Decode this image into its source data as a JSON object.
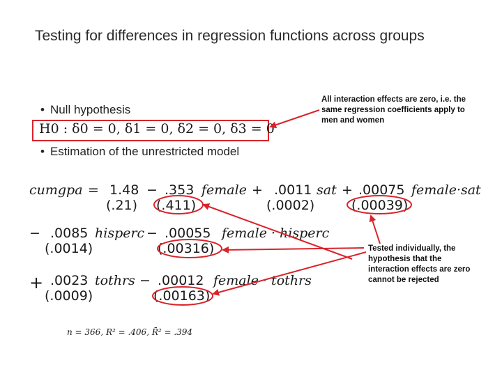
{
  "slide": {
    "title": "Testing for differences in regression functions across groups",
    "bullet_null": "Null hypothesis",
    "bullet_estimation": "Estimation of the unrestricted model",
    "bullet_char": "•",
    "hypothesis": "H0 : δ0 = 0, δ1 = 0, δ2 = 0, δ3 = 0",
    "callout_top": "All interaction effects are zero, i.e. the same regression coefficients apply to men and women",
    "callout_bottom": "Tested individually, the hypothesis that the interaction effects are zero cannot be rejected",
    "stats_line": "n = 366, R² = .406, R̄² = .394"
  },
  "equation": {
    "line1": {
      "dep": "cumgpa",
      "eq": "=",
      "c1": "1.48",
      "op1": "−",
      "c2": ".353",
      "v2": "female",
      "op2": "+",
      "c3": ".0011",
      "v3": "sat",
      "op3": "+",
      "c4": ".00075",
      "v4": "female·sat"
    },
    "se1": {
      "s1": "(.21)",
      "s2": "(.411)",
      "s3": "(.0002)",
      "s4": "(.00039)"
    },
    "line2": {
      "op0": "−",
      "c1": ".0085",
      "v1": "hisperc",
      "op1": "−",
      "c2": ".00055",
      "v2": "female · hisperc"
    },
    "se2": {
      "s1": "(.0014)",
      "s2": "(.00316)"
    },
    "line3": {
      "op0": "+",
      "c1": ".0023",
      "v1": "tothrs",
      "op1": "−",
      "c2": ".00012",
      "v2": "female · tothrs"
    },
    "se3": {
      "s1": "(.0009)",
      "s2": "(.00163)"
    }
  },
  "colors": {
    "highlight": "#d8242b"
  }
}
